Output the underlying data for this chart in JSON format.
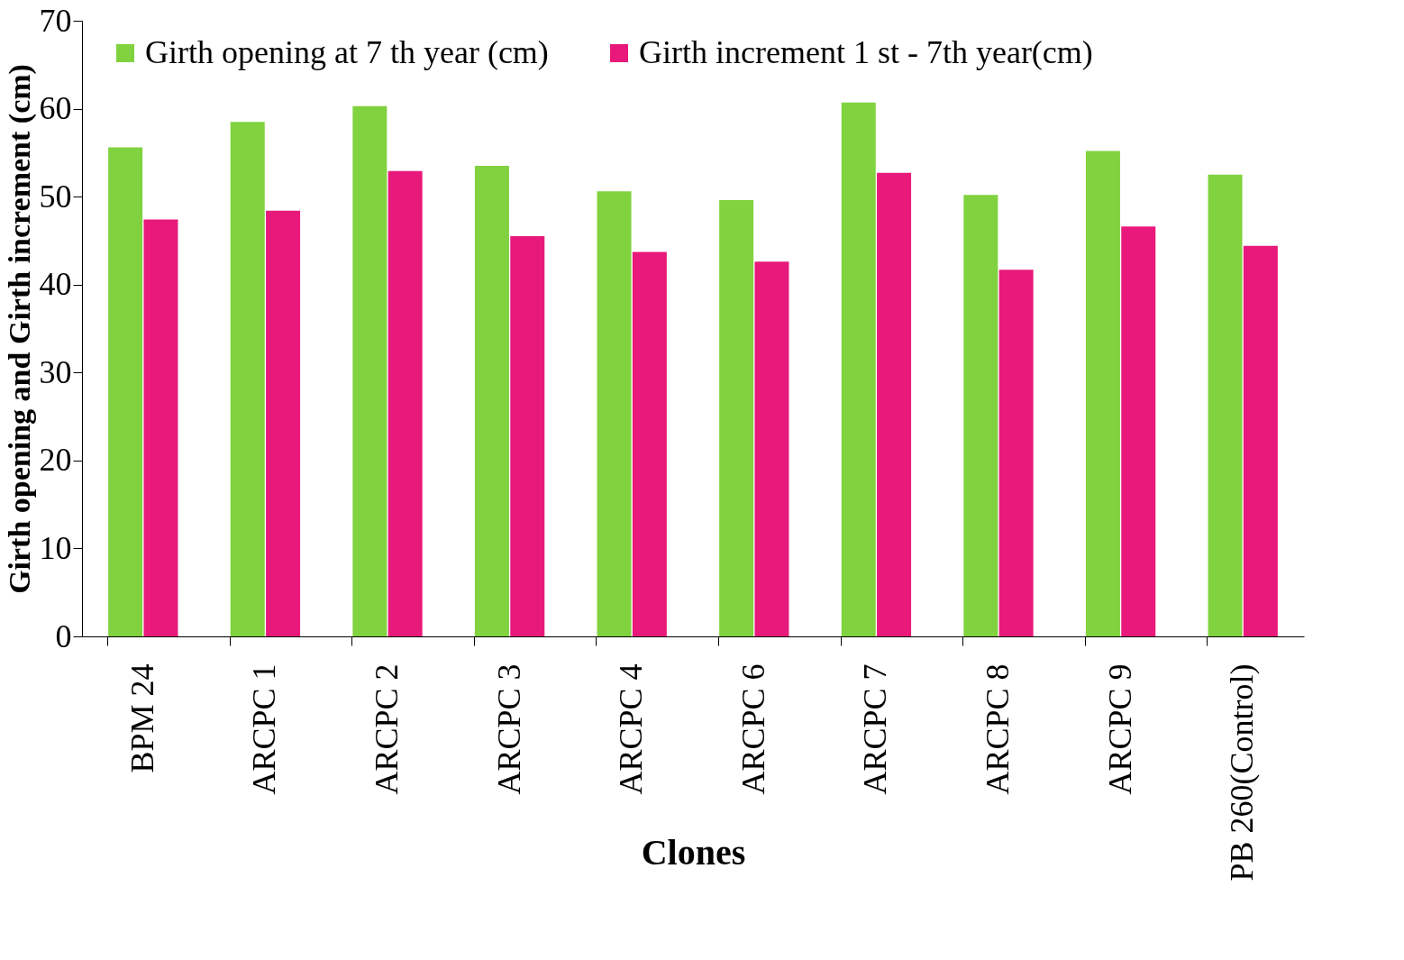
{
  "chart_data": {
    "type": "bar",
    "xlabel": "Clones",
    "ylabel": "Girth opening and Girth increment (cm)",
    "categories": [
      "BPM 24",
      "ARCPC 1",
      "ARCPC 2",
      "ARCPC 3",
      "ARCPC 4",
      "ARCPC 6",
      "ARCPC 7",
      "ARCPC 8",
      "ARCPC 9",
      "PB 260(Control)"
    ],
    "series": [
      {
        "name": "Girth opening at 7 th year (cm)",
        "color": "#80d23e",
        "values": [
          55.6,
          58.5,
          60.3,
          53.5,
          50.6,
          49.6,
          60.7,
          50.2,
          55.2,
          52.5
        ]
      },
      {
        "name": "Girth increment 1 st - 7th year(cm)",
        "color": "#e8197a",
        "values": [
          47.4,
          48.4,
          52.9,
          45.5,
          43.7,
          42.6,
          52.7,
          41.7,
          46.6,
          44.4
        ]
      }
    ],
    "ylim": [
      0,
      70
    ],
    "yticks": [
      0,
      10,
      20,
      30,
      40,
      50,
      60,
      70
    ],
    "grid": false,
    "legend": "top"
  }
}
